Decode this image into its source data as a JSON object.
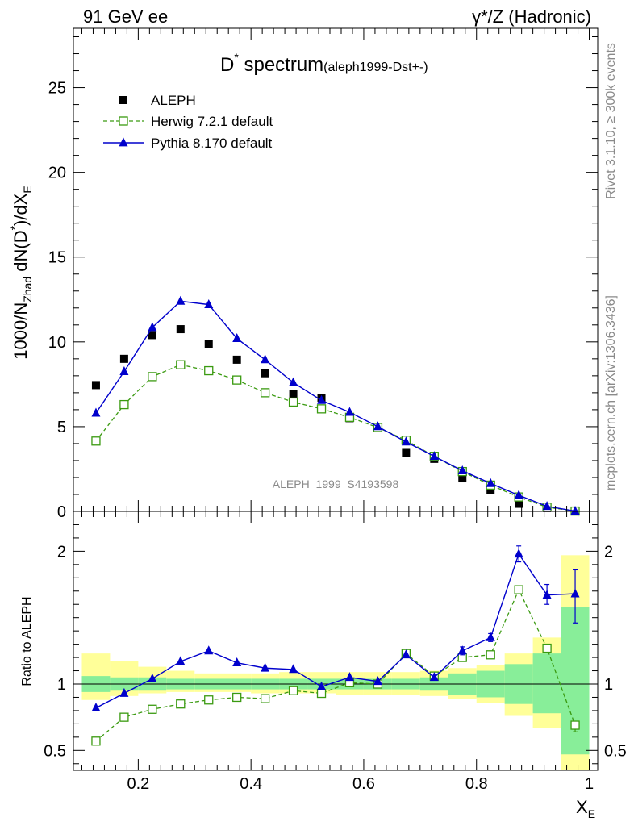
{
  "header": {
    "left": "91 GeV ee",
    "right": "γ*/Z (Hadronic)"
  },
  "side_labels": {
    "rivet": "Rivet 3.1.10, ≥ 300k events",
    "mcplots": "mcplots.cern.ch [arXiv:1306.3436]"
  },
  "chart_data": {
    "type": "line",
    "title_main": "D",
    "title_sup": "*",
    "title_rest": " spectrum",
    "title_small": "(aleph1999-Dst+-)",
    "watermark": "ALEPH_1999_S4193598",
    "xlabel_main": "X",
    "xlabel_sub": "E",
    "ylabel": {
      "a": "1000/N",
      "a_sub": "Zhad",
      "b": " dN(D",
      "b_sup": "*",
      "c": ")/dX",
      "c_sub": "E"
    },
    "ratio_ylabel": "Ratio to ALEPH",
    "xlim": [
      0.085,
      1.015
    ],
    "ylim": [
      0,
      28.5
    ],
    "ratio_ylim": [
      0.35,
      2.3
    ],
    "x_ticks": [
      0.2,
      0.4,
      0.6,
      0.8,
      1
    ],
    "x_tick_labels": [
      "0.2",
      "0.4",
      "0.6",
      "0.8",
      "1"
    ],
    "y_ticks": [
      0,
      5,
      10,
      15,
      20,
      25
    ],
    "y_tick_labels": [
      "0",
      "5",
      "10",
      "15",
      "20",
      "25"
    ],
    "ratio_y_ticks": [
      0.5,
      1,
      2
    ],
    "ratio_y_tick_labels": [
      "0.5",
      "1",
      "2"
    ],
    "x": [
      0.125,
      0.175,
      0.225,
      0.275,
      0.325,
      0.375,
      0.425,
      0.475,
      0.525,
      0.575,
      0.625,
      0.675,
      0.725,
      0.775,
      0.825,
      0.875,
      0.925,
      0.975
    ],
    "bin_edges": [
      0.1,
      0.15,
      0.2,
      0.25,
      0.3,
      0.35,
      0.4,
      0.45,
      0.5,
      0.55,
      0.6,
      0.65,
      0.7,
      0.75,
      0.8,
      0.85,
      0.9,
      0.95,
      1.0
    ],
    "legend": [
      {
        "name": "ALEPH",
        "color": "#000000"
      },
      {
        "name": "Herwig 7.2.1 default",
        "color": "#3a9a10"
      },
      {
        "name": "Pythia 8.170 default",
        "color": "#0000cc"
      }
    ],
    "series": [
      {
        "name": "ALEPH",
        "style": "data",
        "color": "#000000",
        "values": [
          7.45,
          9.0,
          10.4,
          10.75,
          9.85,
          8.95,
          8.15,
          6.9,
          6.7,
          5.5,
          4.95,
          3.45,
          3.1,
          1.95,
          1.25,
          0.45,
          0.2,
          0.02
        ]
      },
      {
        "name": "Herwig 7.2.1 default",
        "style": "dashed-open-square",
        "color": "#3a9a10",
        "values": [
          4.15,
          6.3,
          7.95,
          8.65,
          8.3,
          7.75,
          7.0,
          6.45,
          6.05,
          5.55,
          4.95,
          4.2,
          3.25,
          2.35,
          1.55,
          0.85,
          0.25,
          0.02
        ]
      },
      {
        "name": "Pythia 8.170 default",
        "style": "solid-triangle",
        "color": "#0000cc",
        "values": [
          5.8,
          8.25,
          10.85,
          12.4,
          12.2,
          10.2,
          8.95,
          7.6,
          6.55,
          5.85,
          5.0,
          4.1,
          3.25,
          2.4,
          1.65,
          0.95,
          0.3,
          0.02
        ]
      }
    ],
    "ratio_series": [
      {
        "name": "Herwig 7.2.1 default",
        "color": "#3a9a10",
        "values": [
          0.57,
          0.75,
          0.81,
          0.85,
          0.88,
          0.9,
          0.89,
          0.95,
          0.93,
          1.01,
          1.0,
          1.23,
          1.06,
          1.2,
          1.22,
          1.71,
          1.27,
          0.69
        ],
        "err_low": [
          0,
          0,
          0,
          0,
          0,
          0,
          0,
          0,
          0,
          0,
          0,
          0,
          0,
          0,
          0,
          0.03,
          0,
          0.05
        ],
        "err_high": [
          0,
          0,
          0,
          0,
          0,
          0,
          0,
          0,
          0,
          0,
          0,
          0,
          0,
          0,
          0,
          0.03,
          0,
          0.03
        ]
      },
      {
        "name": "Pythia 8.170 default",
        "color": "#0000cc",
        "values": [
          0.82,
          0.93,
          1.04,
          1.17,
          1.25,
          1.16,
          1.12,
          1.11,
          0.98,
          1.05,
          1.02,
          1.22,
          1.05,
          1.25,
          1.35,
          1.98,
          1.67,
          1.68
        ],
        "err_low": [
          0,
          0,
          0,
          0,
          0,
          0,
          0,
          0,
          0,
          0,
          0,
          0,
          0,
          0.03,
          0.03,
          0.06,
          0.07,
          0.22
        ],
        "err_high": [
          0,
          0,
          0,
          0,
          0,
          0,
          0,
          0,
          0,
          0,
          0,
          0,
          0,
          0.03,
          0.03,
          0.06,
          0.08,
          0.18
        ]
      }
    ],
    "bands": {
      "stat_color": "#88ee99",
      "total_color": "#ffff99",
      "stat_low": [
        0.94,
        0.95,
        0.95,
        0.96,
        0.96,
        0.96,
        0.96,
        0.96,
        0.96,
        0.96,
        0.96,
        0.96,
        0.95,
        0.92,
        0.9,
        0.85,
        0.78,
        0.47
      ],
      "stat_high": [
        1.06,
        1.05,
        1.05,
        1.04,
        1.04,
        1.04,
        1.04,
        1.04,
        1.04,
        1.04,
        1.04,
        1.04,
        1.05,
        1.08,
        1.1,
        1.15,
        1.23,
        1.58
      ],
      "total_low": [
        0.88,
        0.91,
        0.93,
        0.94,
        0.94,
        0.94,
        0.93,
        0.93,
        0.93,
        0.92,
        0.92,
        0.92,
        0.91,
        0.89,
        0.86,
        0.76,
        0.67,
        0.33
      ],
      "total_high": [
        1.23,
        1.17,
        1.13,
        1.1,
        1.08,
        1.08,
        1.08,
        1.09,
        1.09,
        1.09,
        1.09,
        1.09,
        1.1,
        1.12,
        1.14,
        1.23,
        1.35,
        1.97
      ]
    }
  }
}
